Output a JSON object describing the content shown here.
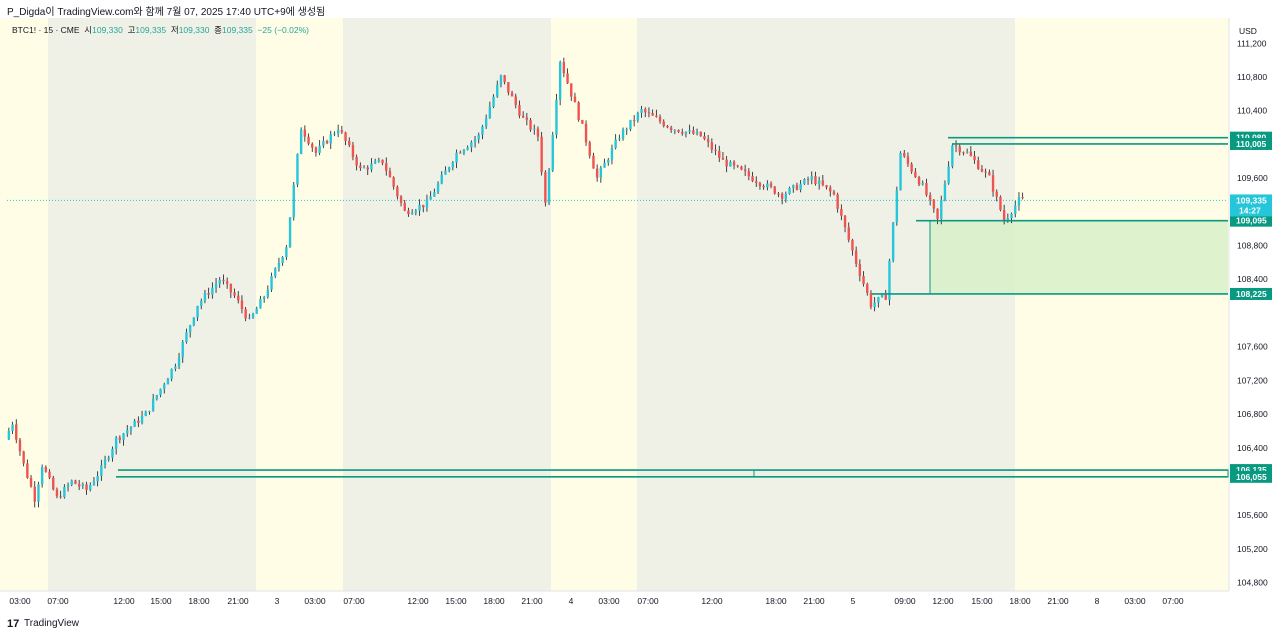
{
  "header": {
    "title": "P_Digda이 TradingView.com와 함께 7월 07, 2025 17:40 UTC+9에 생성됨"
  },
  "legend": {
    "symbol": "BTC1! · 15 · CME",
    "open_label": "시",
    "open": "109,330",
    "high_label": "고",
    "high": "109,335",
    "low_label": "저",
    "low": "109,330",
    "close_label": "종",
    "close": "109,335",
    "change": "−25 (−0.02%)"
  },
  "price_axis": {
    "currency": "USD",
    "ticks": [
      111200,
      110800,
      110400,
      109600,
      108800,
      108400,
      107600,
      107200,
      106800,
      106400,
      105600,
      105200,
      104800
    ]
  },
  "current_price": {
    "value": 109335,
    "label": "109,335",
    "countdown": "14:27"
  },
  "levels": [
    {
      "value": 110080,
      "label": "110,080"
    },
    {
      "value": 110005,
      "label": "110,005"
    },
    {
      "value": 109095,
      "label": "109,095"
    },
    {
      "value": 108225,
      "label": "108,225"
    },
    {
      "value": 106135,
      "label": "106,135"
    },
    {
      "value": 106055,
      "label": "106,055"
    }
  ],
  "time_axis": {
    "labels": [
      "03:00",
      "07:00",
      "12:00",
      "15:00",
      "18:00",
      "21:00",
      "3",
      "03:00",
      "07:00",
      "12:00",
      "15:00",
      "18:00",
      "21:00",
      "4",
      "03:00",
      "07:00",
      "12:00",
      "18:00",
      "21:00",
      "5",
      "09:00",
      "12:00",
      "15:00",
      "18:00",
      "21:00",
      "8",
      "03:00",
      "07:00"
    ]
  },
  "footer": {
    "brand": "TradingView",
    "logo": "17"
  },
  "colors": {
    "up": "#26c6da",
    "down": "#ef5350",
    "level": "#089981",
    "session_night": "#fffde6",
    "session_day": "#f0f1e6",
    "zone": "#d8f0c8"
  },
  "chart_data": {
    "type": "candlestick",
    "instrument": "BTC1!",
    "interval": "15",
    "close_path": [
      {
        "t": 0,
        "p": 106500
      },
      {
        "t": 2,
        "p": 106700
      },
      {
        "t": 5,
        "p": 106200
      },
      {
        "t": 8,
        "p": 105800
      },
      {
        "t": 10,
        "p": 106200
      },
      {
        "t": 14,
        "p": 105800
      },
      {
        "t": 18,
        "p": 106000
      },
      {
        "t": 22,
        "p": 105900
      },
      {
        "t": 26,
        "p": 106150
      },
      {
        "t": 30,
        "p": 106500
      },
      {
        "t": 38,
        "p": 106800
      },
      {
        "t": 46,
        "p": 107400
      },
      {
        "t": 52,
        "p": 108100
      },
      {
        "t": 58,
        "p": 108400
      },
      {
        "t": 62,
        "p": 108200
      },
      {
        "t": 66,
        "p": 107900
      },
      {
        "t": 70,
        "p": 108200
      },
      {
        "t": 76,
        "p": 108800
      },
      {
        "t": 80,
        "p": 110200
      },
      {
        "t": 84,
        "p": 109900
      },
      {
        "t": 90,
        "p": 110200
      },
      {
        "t": 96,
        "p": 109700
      },
      {
        "t": 102,
        "p": 109800
      },
      {
        "t": 108,
        "p": 109200
      },
      {
        "t": 114,
        "p": 109300
      },
      {
        "t": 122,
        "p": 109900
      },
      {
        "t": 128,
        "p": 110100
      },
      {
        "t": 134,
        "p": 110800
      },
      {
        "t": 140,
        "p": 110300
      },
      {
        "t": 144,
        "p": 110100
      },
      {
        "t": 146,
        "p": 109300
      },
      {
        "t": 150,
        "p": 111000
      },
      {
        "t": 156,
        "p": 110200
      },
      {
        "t": 160,
        "p": 109600
      },
      {
        "t": 166,
        "p": 110100
      },
      {
        "t": 172,
        "p": 110400
      },
      {
        "t": 180,
        "p": 110200
      },
      {
        "t": 188,
        "p": 110100
      },
      {
        "t": 194,
        "p": 109800
      },
      {
        "t": 202,
        "p": 109600
      },
      {
        "t": 210,
        "p": 109400
      },
      {
        "t": 218,
        "p": 109600
      },
      {
        "t": 224,
        "p": 109400
      },
      {
        "t": 230,
        "p": 108600
      },
      {
        "t": 234,
        "p": 108100
      },
      {
        "t": 238,
        "p": 108200
      },
      {
        "t": 242,
        "p": 109900
      },
      {
        "t": 248,
        "p": 109500
      },
      {
        "t": 252,
        "p": 109100
      },
      {
        "t": 256,
        "p": 110000
      },
      {
        "t": 260,
        "p": 109900
      },
      {
        "t": 266,
        "p": 109600
      },
      {
        "t": 270,
        "p": 109100
      },
      {
        "t": 274,
        "p": 109335
      }
    ],
    "x_range": [
      0,
      330
    ],
    "y_range": [
      104700,
      111500
    ]
  }
}
